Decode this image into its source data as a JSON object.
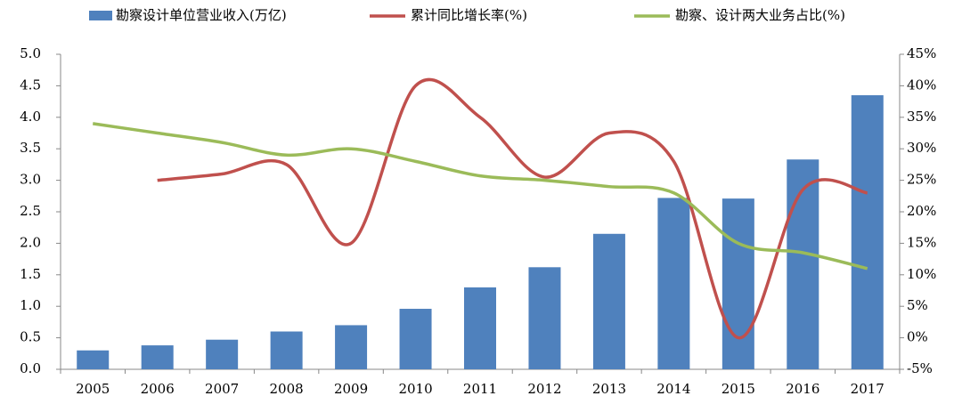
{
  "chart_data": {
    "type": "combo",
    "categories": [
      "2005",
      "2006",
      "2007",
      "2008",
      "2009",
      "2010",
      "2011",
      "2012",
      "2013",
      "2014",
      "2015",
      "2016",
      "2017"
    ],
    "series": [
      {
        "name": "勘察设计单位营业收入(万亿)",
        "type": "bar",
        "color": "#4f81bd",
        "values": [
          0.3,
          0.38,
          0.47,
          0.6,
          0.7,
          0.96,
          1.3,
          1.62,
          2.15,
          2.72,
          2.71,
          3.33,
          4.35
        ]
      },
      {
        "name": "累计同比增长率(%)",
        "type": "line",
        "axis": "y2",
        "color": "#c0504d",
        "values": [
          null,
          25,
          26,
          27.5,
          15,
          40,
          35,
          25.5,
          32.5,
          28,
          0,
          23.5,
          23
        ]
      },
      {
        "name": "勘察、设计两大业务占比(%)",
        "type": "line",
        "axis": "y2",
        "color": "#9bbb59",
        "values": [
          34,
          32.5,
          31,
          29,
          30,
          28,
          25.7,
          25,
          24,
          23,
          15,
          13.5,
          11
        ]
      }
    ],
    "ylim": [
      0,
      5
    ],
    "yticks": [
      {
        "value": 0,
        "label": "0.0"
      },
      {
        "value": 0.5,
        "label": "0.5"
      },
      {
        "value": 1,
        "label": "1.0"
      },
      {
        "value": 1.5,
        "label": "1.5"
      },
      {
        "value": 2,
        "label": "2.0"
      },
      {
        "value": 2.5,
        "label": "2.5"
      },
      {
        "value": 3,
        "label": "3.0"
      },
      {
        "value": 3.5,
        "label": "3.5"
      },
      {
        "value": 4,
        "label": "4.0"
      },
      {
        "value": 4.5,
        "label": "4.5"
      },
      {
        "value": 5,
        "label": "5.0"
      }
    ],
    "y2lim": [
      -5,
      45
    ],
    "y2ticks": [
      {
        "value": -5,
        "label": "-5%"
      },
      {
        "value": 0,
        "label": "0%"
      },
      {
        "value": 5,
        "label": "5%"
      },
      {
        "value": 10,
        "label": "10%"
      },
      {
        "value": 15,
        "label": "15%"
      },
      {
        "value": 20,
        "label": "20%"
      },
      {
        "value": 25,
        "label": "25%"
      },
      {
        "value": 30,
        "label": "30%"
      },
      {
        "value": 35,
        "label": "35%"
      },
      {
        "value": 40,
        "label": "40%"
      },
      {
        "value": 45,
        "label": "45%"
      }
    ],
    "grid": false,
    "legend": "top"
  }
}
